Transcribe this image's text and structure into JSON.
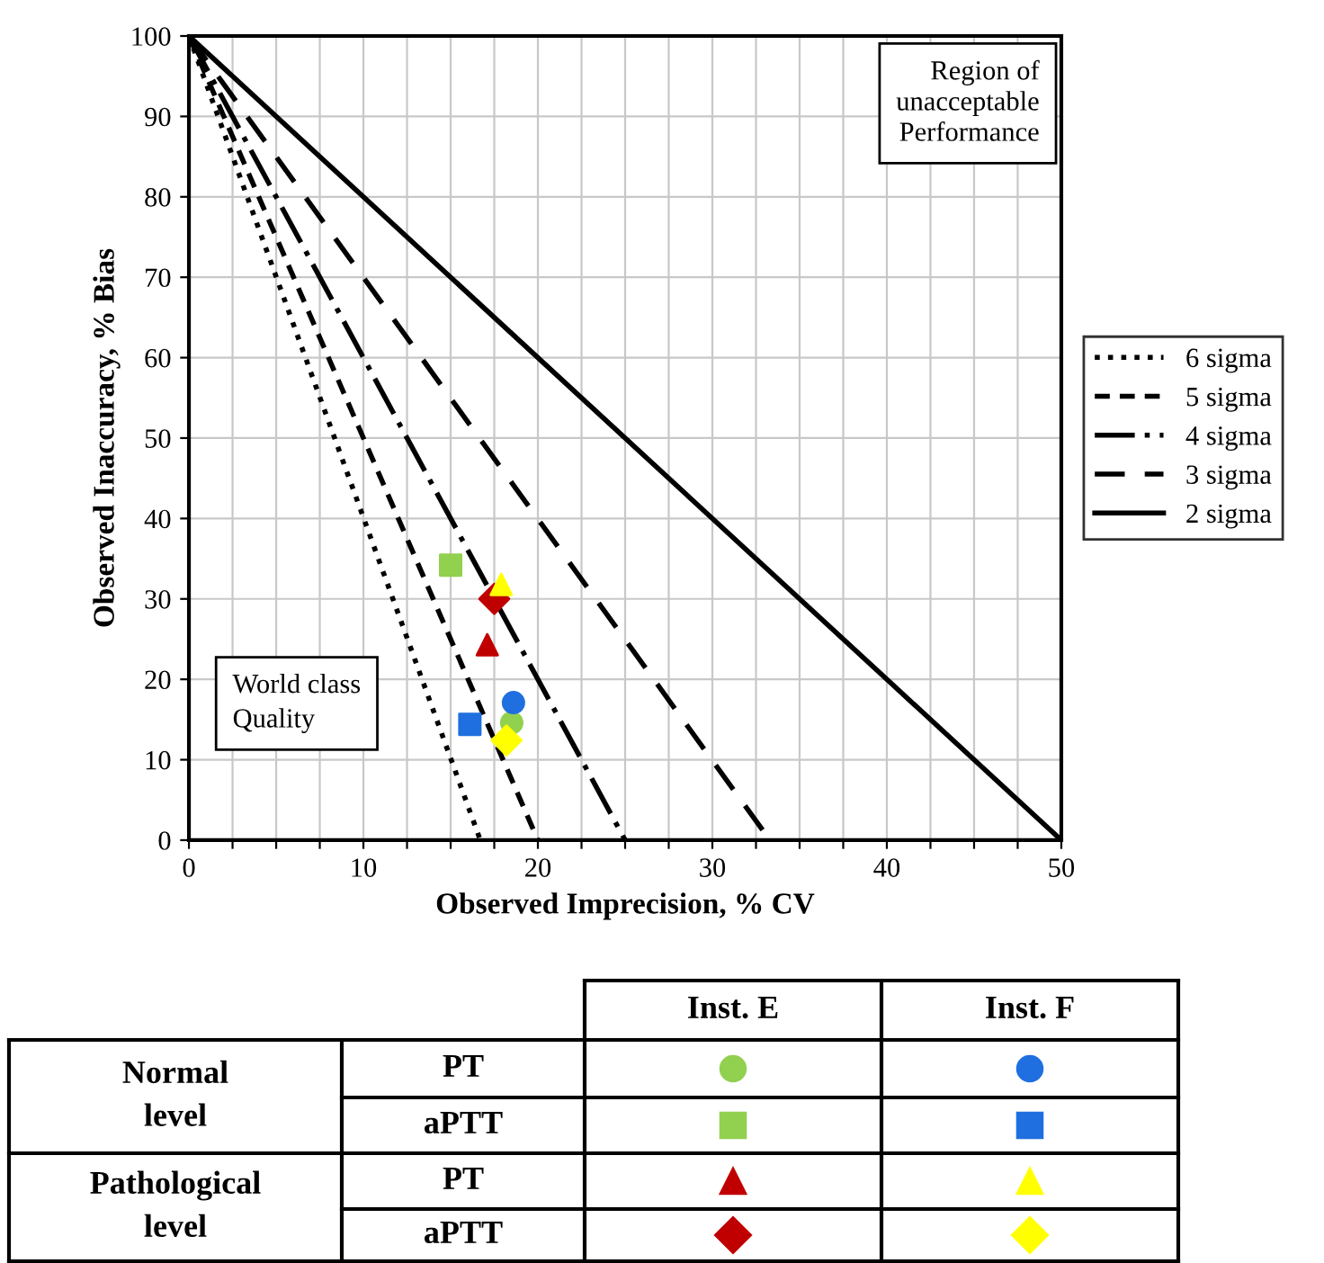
{
  "chart_data": {
    "type": "scatter",
    "xlabel": "Observed Imprecision, % CV",
    "ylabel": "Observed Inaccuracy, % Bias",
    "xlim": [
      0,
      50
    ],
    "ylim": [
      0,
      100
    ],
    "xticks": [
      0,
      {
        "value": 2.5,
        "label": null
      },
      {
        "value": 5,
        "label": null
      },
      {
        "value": 7.5,
        "label": null
      },
      10,
      {
        "value": 12.5,
        "label": null
      },
      {
        "value": 15,
        "label": null
      },
      {
        "value": 17.5,
        "label": null
      },
      20,
      {
        "value": 22.5,
        "label": null
      },
      {
        "value": 25,
        "label": null
      },
      {
        "value": 27.5,
        "label": null
      },
      30,
      {
        "value": 32.5,
        "label": null
      },
      {
        "value": 35,
        "label": null
      },
      {
        "value": 37.5,
        "label": null
      },
      40,
      {
        "value": 42.5,
        "label": null
      },
      {
        "value": 45,
        "label": null
      },
      {
        "value": 47.5,
        "label": null
      },
      50
    ],
    "yticks": [
      0,
      10,
      20,
      30,
      40,
      50,
      60,
      70,
      80,
      90,
      100
    ],
    "grid": true,
    "legend": "right",
    "series": [
      {
        "type": "line",
        "name": "6 sigma",
        "color": "#000000",
        "line_style": "dotted",
        "x": [
          0,
          16.7
        ],
        "values": [
          100,
          0
        ]
      },
      {
        "type": "line",
        "name": "5 sigma",
        "color": "#000000",
        "line_style": "dashed",
        "x": [
          0,
          20
        ],
        "values": [
          100,
          0
        ]
      },
      {
        "type": "line",
        "name": "4 sigma",
        "color": "#000000",
        "line_style": "dashdot",
        "x": [
          0,
          25
        ],
        "values": [
          100,
          0
        ]
      },
      {
        "type": "line",
        "name": "3 sigma",
        "color": "#000000",
        "line_style": "dashed",
        "x": [
          0,
          33.3
        ],
        "values": [
          100,
          0
        ]
      },
      {
        "type": "line",
        "name": "2 sigma",
        "color": "#000000",
        "line_style": "solid",
        "x": [
          0,
          50
        ],
        "values": [
          100,
          0
        ]
      },
      {
        "color": "#92d050",
        "marker": "circle",
        "x": [
          18.5
        ],
        "values": [
          14.6
        ]
      },
      {
        "color": "#92d050",
        "marker": "square",
        "x": [
          15.0
        ],
        "values": [
          34.2
        ]
      },
      {
        "color": "#c00000",
        "marker": "triangle",
        "x": [
          17.1
        ],
        "values": [
          24.3
        ]
      },
      {
        "color": "#c00000",
        "marker": "diamond",
        "x": [
          17.5
        ],
        "values": [
          30.0
        ]
      },
      {
        "color": "#1f6fe0",
        "marker": "circle",
        "x": [
          18.6
        ],
        "values": [
          17.1
        ]
      },
      {
        "color": "#1f6fe0",
        "marker": "square",
        "x": [
          16.1
        ],
        "values": [
          14.4
        ]
      },
      {
        "color": "#ffff00",
        "marker": "triangle",
        "x": [
          17.9
        ],
        "values": [
          31.8
        ]
      },
      {
        "color": "#ffff00",
        "marker": "diamond",
        "x": [
          18.2
        ],
        "values": [
          12.4
        ]
      }
    ],
    "annotations": [
      "Region of\nunacceptable\nPerformance",
      "World class\nQuality",
      "Inst. E",
      "Inst. F",
      "Normal\nlevel",
      "Pathological\nlevel",
      "PT",
      "aPTT",
      "PT",
      "aPTT"
    ]
  }
}
